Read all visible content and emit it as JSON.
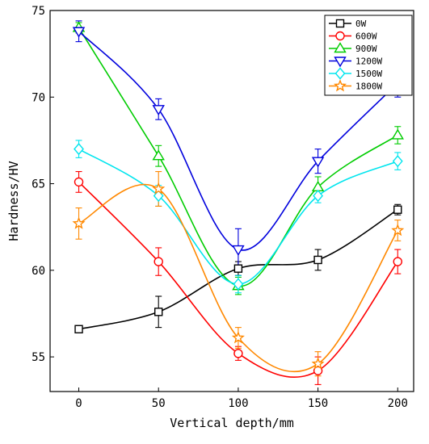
{
  "chart_data": {
    "type": "scatter",
    "xlabel": "Vertical depth/mm",
    "ylabel": "Hardness/HV",
    "x": [
      0,
      50,
      100,
      150,
      200
    ],
    "xlim": [
      -18,
      210
    ],
    "ylim": [
      53,
      75
    ],
    "xticks": [
      0,
      50,
      100,
      150,
      200
    ],
    "yticks": [
      55,
      60,
      65,
      70,
      75
    ],
    "grid": false,
    "legend_position": "top-right",
    "fitted_curves": true,
    "series": [
      {
        "name": "0W",
        "marker": "square",
        "color": "#000000",
        "values": [
          56.6,
          57.6,
          60.1,
          60.6,
          63.5
        ],
        "errors": [
          0.1,
          0.9,
          0.4,
          0.6,
          0.3
        ]
      },
      {
        "name": "600W",
        "marker": "circle",
        "color": "#ff0000",
        "values": [
          65.1,
          60.5,
          55.2,
          54.2,
          60.5
        ],
        "errors": [
          0.6,
          0.8,
          0.4,
          0.8,
          0.7
        ]
      },
      {
        "name": "900W",
        "marker": "triangle-up",
        "color": "#00cc00",
        "values": [
          74.0,
          66.6,
          59.1,
          64.8,
          67.8
        ],
        "errors": [
          0.3,
          0.6,
          0.5,
          0.6,
          0.5
        ]
      },
      {
        "name": "1200W",
        "marker": "triangle-down",
        "color": "#0000dd",
        "values": [
          73.8,
          69.3,
          61.2,
          66.3,
          70.8
        ],
        "errors": [
          0.6,
          0.6,
          1.2,
          0.7,
          0.8
        ]
      },
      {
        "name": "1500W",
        "marker": "diamond",
        "color": "#00e5ee",
        "values": [
          67.0,
          64.3,
          59.2,
          64.3,
          66.3
        ],
        "errors": [
          0.5,
          0.6,
          0.5,
          0.4,
          0.5
        ]
      },
      {
        "name": "1800W",
        "marker": "star",
        "color": "#ff8800",
        "values": [
          62.7,
          64.7,
          56.1,
          54.6,
          62.3
        ],
        "errors": [
          0.9,
          1.0,
          0.6,
          0.7,
          0.6
        ]
      }
    ]
  }
}
